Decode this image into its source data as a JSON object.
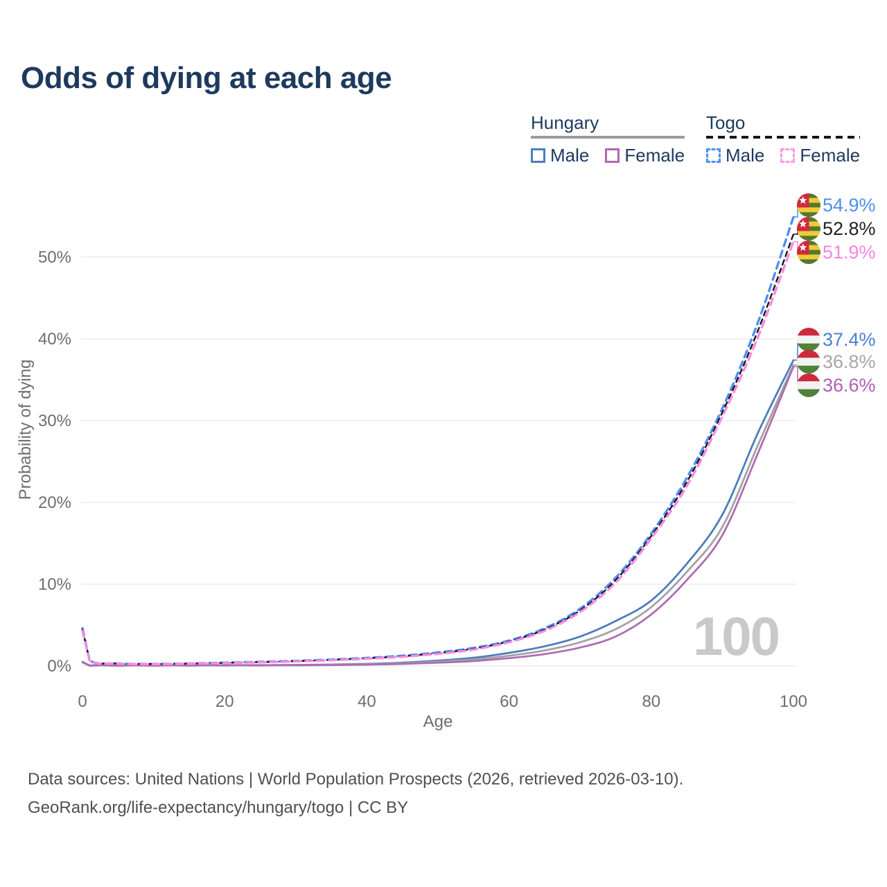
{
  "title": "Odds of dying at each age",
  "legend": {
    "hungary": {
      "country": "Hungary",
      "male": "Male",
      "female": "Female"
    },
    "togo": {
      "country": "Togo",
      "male": "Male",
      "female": "Female"
    }
  },
  "footer": {
    "line1": "Data sources: United Nations | World Population Prospects (2026, retrieved 2026-03-10).",
    "line2": "GeoRank.org/life-expectancy/hungary/togo | CC BY"
  },
  "chart_data": {
    "type": "line",
    "title": "Odds of dying at each age",
    "xlabel": "Age",
    "ylabel": "Probability of dying",
    "age_indicator": "100",
    "xlim": [
      0,
      100
    ],
    "ylim_pct": [
      0,
      57
    ],
    "grid": "horizontal",
    "legend_position": "top-right",
    "xticks": [
      0,
      20,
      40,
      60,
      80,
      100
    ],
    "xtick_labels": [
      "0",
      "20",
      "40",
      "60",
      "80",
      "100"
    ],
    "yticks_pct": [
      0,
      10,
      20,
      30,
      40,
      50
    ],
    "ytick_labels": [
      "0%",
      "10%",
      "20%",
      "30%",
      "40%",
      "50%"
    ],
    "ages": [
      0,
      1,
      5,
      10,
      15,
      20,
      25,
      30,
      35,
      40,
      45,
      50,
      55,
      60,
      65,
      70,
      75,
      80,
      85,
      90,
      95,
      100
    ],
    "series": [
      {
        "id": "hungary_male",
        "name": "Hungary Male",
        "country": "Hungary",
        "sex": "Male",
        "color": "#4d7cbe",
        "dash": "solid",
        "flag": "hungary",
        "end_label": "37.4%",
        "label_color": "#4a7fd2",
        "values_pct": [
          0.5,
          0.05,
          0.03,
          0.03,
          0.06,
          0.09,
          0.1,
          0.12,
          0.17,
          0.25,
          0.4,
          0.65,
          1.0,
          1.6,
          2.4,
          3.6,
          5.5,
          8.0,
          12.5,
          18.5,
          28.5,
          37.4
        ]
      },
      {
        "id": "hungary_all",
        "name": "Hungary",
        "country": "Hungary",
        "sex": "Both",
        "color": "#a2a2a2",
        "dash": "solid",
        "flag": "hungary",
        "end_label": "36.8%",
        "label_color": "#a6a6a6",
        "values_pct": [
          0.48,
          0.045,
          0.025,
          0.025,
          0.05,
          0.07,
          0.08,
          0.1,
          0.14,
          0.2,
          0.32,
          0.52,
          0.8,
          1.25,
          1.9,
          2.9,
          4.5,
          7.2,
          11.5,
          17.0,
          27.0,
          36.8
        ]
      },
      {
        "id": "hungary_female",
        "name": "Hungary Female",
        "country": "Hungary",
        "sex": "Female",
        "color": "#af6cb2",
        "dash": "solid",
        "flag": "hungary",
        "end_label": "36.6%",
        "label_color": "#b05fb3",
        "values_pct": [
          0.45,
          0.04,
          0.02,
          0.02,
          0.04,
          0.05,
          0.06,
          0.08,
          0.11,
          0.16,
          0.25,
          0.4,
          0.6,
          0.95,
          1.45,
          2.25,
          3.6,
          6.3,
          10.5,
          16.0,
          26.0,
          36.6
        ]
      },
      {
        "id": "togo_male",
        "name": "Togo Male",
        "country": "Togo",
        "sex": "Male",
        "color": "#4e8ff2",
        "dash": "dashed",
        "flag": "togo",
        "end_label": "54.9%",
        "label_color": "#4e8fec",
        "values_pct": [
          4.6,
          0.7,
          0.3,
          0.25,
          0.3,
          0.4,
          0.5,
          0.62,
          0.78,
          0.98,
          1.25,
          1.65,
          2.2,
          3.1,
          4.6,
          7.0,
          10.8,
          16.2,
          23.0,
          31.5,
          42.0,
          54.9
        ]
      },
      {
        "id": "togo_all",
        "name": "Togo",
        "country": "Togo",
        "sex": "Both",
        "color": "#161616",
        "dash": "dashed",
        "flag": "togo",
        "end_label": "52.8%",
        "label_color": "#212121",
        "values_pct": [
          4.45,
          0.68,
          0.29,
          0.24,
          0.28,
          0.38,
          0.47,
          0.58,
          0.74,
          0.93,
          1.18,
          1.55,
          2.1,
          3.0,
          4.45,
          6.8,
          10.5,
          15.9,
          22.5,
          31.0,
          41.0,
          52.8
        ]
      },
      {
        "id": "togo_female",
        "name": "Togo Female",
        "country": "Togo",
        "sex": "Female",
        "color": "#fb8ae0",
        "dash": "dashed",
        "flag": "togo",
        "end_label": "51.9%",
        "label_color": "#f883e0",
        "values_pct": [
          4.3,
          0.65,
          0.28,
          0.22,
          0.27,
          0.35,
          0.44,
          0.55,
          0.7,
          0.88,
          1.12,
          1.48,
          2.0,
          2.9,
          4.3,
          6.6,
          10.2,
          15.6,
          22.0,
          30.5,
          40.2,
          51.9
        ]
      }
    ]
  }
}
